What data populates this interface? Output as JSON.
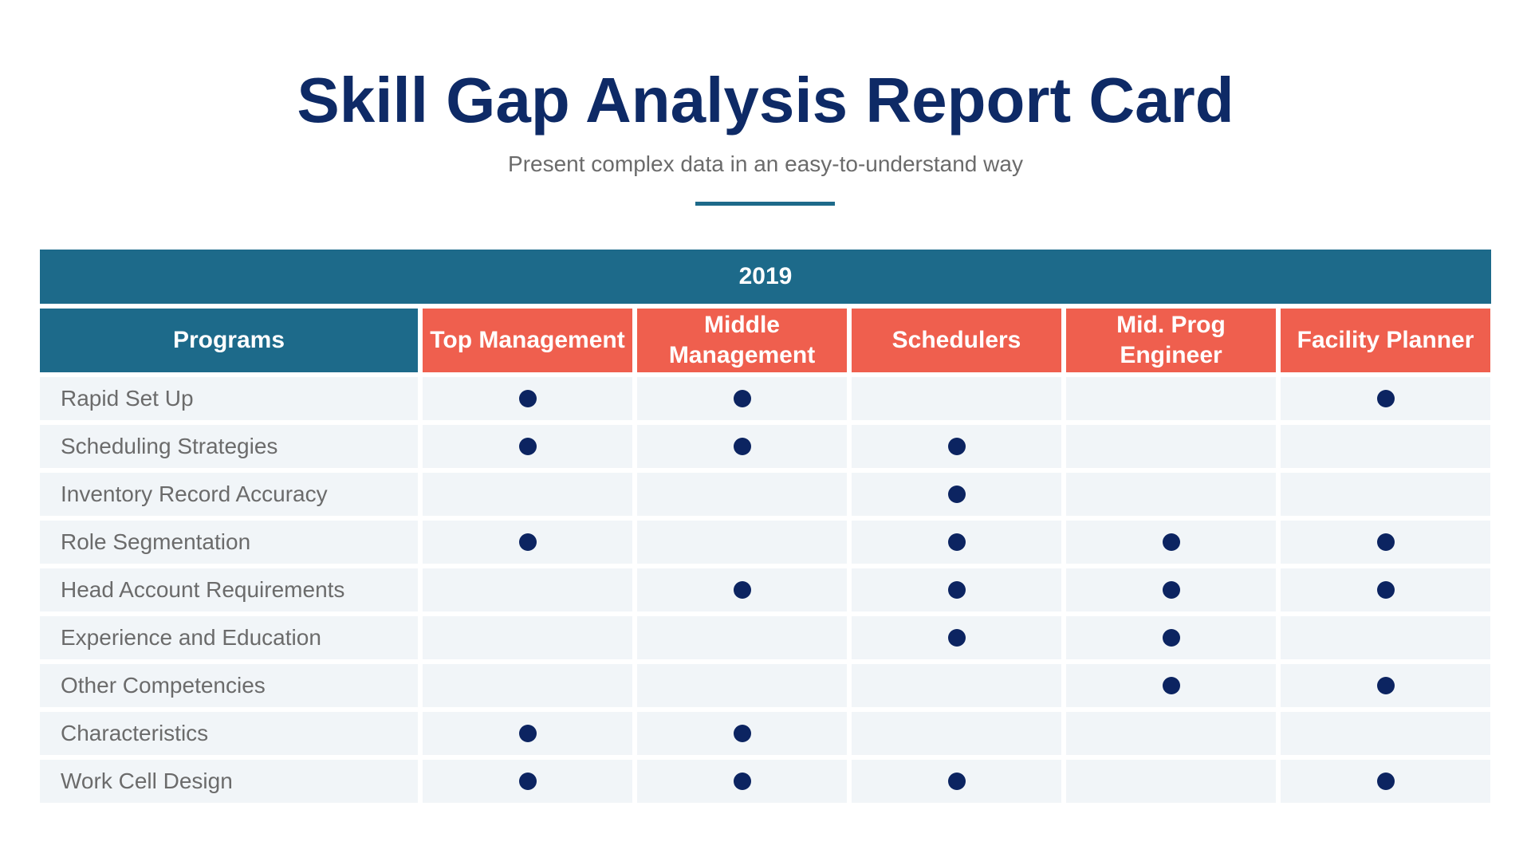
{
  "title": "Skill Gap Analysis Report Card",
  "subtitle": "Present complex data in an easy-to-understand way",
  "colors": {
    "header_teal": "#1d6a8a",
    "header_coral": "#ef5f4e",
    "dot": "#0c2461",
    "row_bg": "#f1f5f8"
  },
  "table": {
    "year": "2019",
    "columns": [
      "Programs",
      "Top Management",
      "Middle Management",
      "Schedulers",
      "Mid. Prog Engineer",
      "Facility Planner"
    ],
    "rows": [
      {
        "program": "Rapid Set Up",
        "marks": [
          true,
          true,
          false,
          false,
          true
        ]
      },
      {
        "program": "Scheduling Strategies",
        "marks": [
          true,
          true,
          true,
          false,
          false
        ]
      },
      {
        "program": "Inventory Record Accuracy",
        "marks": [
          false,
          false,
          true,
          false,
          false
        ]
      },
      {
        "program": "Role Segmentation",
        "marks": [
          true,
          false,
          true,
          true,
          true
        ]
      },
      {
        "program": "Head Account Requirements",
        "marks": [
          false,
          true,
          true,
          true,
          true
        ]
      },
      {
        "program": "Experience and Education",
        "marks": [
          false,
          false,
          true,
          true,
          false
        ]
      },
      {
        "program": "Other Competencies",
        "marks": [
          false,
          false,
          false,
          true,
          true
        ]
      },
      {
        "program": "Characteristics",
        "marks": [
          true,
          true,
          false,
          false,
          false
        ]
      },
      {
        "program": "Work Cell Design",
        "marks": [
          true,
          true,
          true,
          false,
          true
        ]
      }
    ]
  }
}
